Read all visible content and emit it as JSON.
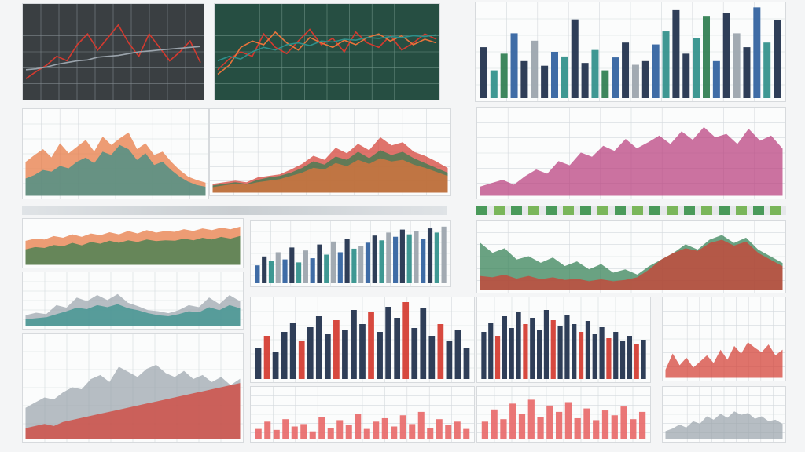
{
  "palette": {
    "red": "#d43a2f",
    "green": "#2e7d4f",
    "teal": "#2f8f8a",
    "orange": "#e8743b",
    "magenta": "#b8397a",
    "navy": "#1d2e4a",
    "blue": "#2f5f9e",
    "gray": "#9aa3ab",
    "lightred": "#e86a6a"
  },
  "chart_data": [
    {
      "id": "p1",
      "type": "line",
      "theme": "dark",
      "x": [
        1,
        2,
        3,
        4,
        5,
        6,
        7,
        8,
        9,
        10,
        11,
        12,
        13,
        14,
        15,
        16,
        17,
        18
      ],
      "series": [
        {
          "color": "red",
          "values": [
            20,
            28,
            35,
            45,
            40,
            58,
            70,
            52,
            66,
            80,
            60,
            45,
            70,
            55,
            40,
            50,
            62,
            38
          ]
        },
        {
          "color": "gray",
          "values": [
            30,
            31,
            33,
            36,
            38,
            40,
            41,
            44,
            45,
            46,
            48,
            50,
            51,
            52,
            53,
            54,
            55,
            56
          ]
        }
      ],
      "ylim": [
        0,
        100
      ],
      "grid": true
    },
    {
      "id": "p2",
      "type": "line",
      "theme": "darkgreen",
      "x": [
        1,
        2,
        3,
        4,
        5,
        6,
        7,
        8,
        9,
        10,
        11,
        12,
        13,
        14,
        15,
        16,
        17,
        18,
        19,
        20
      ],
      "series": [
        {
          "color": "red",
          "values": [
            30,
            42,
            50,
            45,
            70,
            55,
            48,
            62,
            75,
            58,
            65,
            50,
            72,
            60,
            55,
            68,
            52,
            60,
            70,
            64
          ]
        },
        {
          "color": "orange",
          "values": [
            25,
            35,
            55,
            62,
            58,
            72,
            60,
            52,
            66,
            60,
            55,
            63,
            58,
            66,
            70,
            62,
            68,
            58,
            64,
            60
          ]
        },
        {
          "color": "teal",
          "values": [
            40,
            45,
            42,
            50,
            55,
            52,
            58,
            60,
            57,
            62,
            61,
            64,
            63,
            66,
            65,
            67,
            66,
            68,
            67,
            69
          ]
        }
      ],
      "ylim": [
        0,
        100
      ],
      "grid": true
    },
    {
      "id": "p3",
      "type": "bar",
      "theme": "light",
      "values": [
        55,
        30,
        48,
        70,
        40,
        62,
        35,
        50,
        45,
        85,
        38,
        52,
        30,
        44,
        60,
        36,
        40,
        58,
        72,
        95,
        48,
        65,
        88,
        40,
        92,
        70,
        55,
        98,
        60,
        84
      ],
      "colors": [
        "navy",
        "teal",
        "green",
        "blue",
        "navy",
        "gray",
        "navy",
        "blue",
        "teal",
        "navy"
      ],
      "ylim": [
        0,
        100
      ],
      "grid": true
    },
    {
      "id": "p4",
      "type": "area",
      "theme": "light",
      "x": [
        1,
        2,
        3,
        4,
        5,
        6,
        7,
        8,
        9,
        10,
        11,
        12,
        13,
        14,
        15,
        16,
        17,
        18,
        19,
        20,
        21,
        22
      ],
      "series": [
        {
          "color": "orange",
          "values": [
            40,
            48,
            55,
            45,
            62,
            50,
            58,
            66,
            52,
            70,
            60,
            68,
            75,
            55,
            62,
            48,
            52,
            40,
            30,
            22,
            18,
            15
          ]
        },
        {
          "color": "teal",
          "values": [
            20,
            24,
            30,
            28,
            35,
            32,
            40,
            45,
            38,
            52,
            48,
            60,
            55,
            42,
            50,
            36,
            40,
            30,
            22,
            16,
            12,
            10
          ]
        }
      ],
      "ylim": [
        0,
        100
      ],
      "grid": true
    },
    {
      "id": "p5",
      "type": "area",
      "theme": "light",
      "x": [
        1,
        2,
        3,
        4,
        5,
        6,
        7,
        8,
        9,
        10,
        11,
        12,
        13,
        14,
        15,
        16,
        17,
        18,
        19,
        20,
        21,
        22
      ],
      "series": [
        {
          "color": "red",
          "values": [
            10,
            12,
            14,
            12,
            18,
            20,
            22,
            28,
            35,
            45,
            40,
            55,
            48,
            60,
            52,
            68,
            58,
            62,
            50,
            45,
            38,
            30
          ]
        },
        {
          "color": "green",
          "values": [
            8,
            10,
            12,
            10,
            15,
            18,
            20,
            24,
            30,
            38,
            34,
            44,
            40,
            50,
            42,
            52,
            46,
            50,
            42,
            36,
            30,
            24
          ]
        },
        {
          "color": "orange",
          "values": [
            6,
            8,
            10,
            9,
            12,
            14,
            16,
            20,
            24,
            30,
            28,
            36,
            32,
            40,
            35,
            42,
            38,
            40,
            34,
            30,
            25,
            20
          ]
        }
      ],
      "ylim": [
        0,
        100
      ],
      "grid": true
    },
    {
      "id": "p6",
      "type": "area",
      "theme": "light",
      "x": [
        1,
        2,
        3,
        4,
        5,
        6,
        7,
        8,
        9,
        10,
        11,
        12,
        13,
        14,
        15,
        16,
        17,
        18,
        19,
        20,
        21,
        22,
        23,
        24,
        25,
        26,
        27,
        28
      ],
      "series": [
        {
          "color": "magenta",
          "values": [
            10,
            14,
            18,
            12,
            22,
            30,
            25,
            40,
            35,
            50,
            45,
            58,
            52,
            66,
            55,
            62,
            70,
            60,
            75,
            65,
            80,
            68,
            72,
            60,
            78,
            64,
            70,
            55
          ]
        }
      ],
      "ylim": [
        0,
        100
      ],
      "grid": true
    },
    {
      "id": "p7",
      "type": "area",
      "theme": "light",
      "x": [
        1,
        2,
        3,
        4,
        5,
        6,
        7,
        8,
        9,
        10,
        11,
        12,
        13,
        14,
        15,
        16,
        17,
        18,
        19,
        20,
        21,
        22,
        23,
        24
      ],
      "series": [
        {
          "color": "orange",
          "values": [
            55,
            60,
            58,
            66,
            62,
            70,
            64,
            72,
            68,
            75,
            70,
            78,
            72,
            80,
            74,
            78,
            76,
            82,
            78,
            84,
            80,
            86,
            82,
            88
          ]
        },
        {
          "color": "green",
          "values": [
            35,
            40,
            38,
            45,
            42,
            50,
            44,
            52,
            48,
            55,
            50,
            56,
            52,
            58,
            54,
            56,
            55,
            60,
            56,
            62,
            58,
            64,
            60,
            66
          ]
        }
      ],
      "ylim": [
        0,
        100
      ],
      "grid": false
    },
    {
      "id": "p8",
      "type": "bar",
      "theme": "light",
      "values": [
        30,
        45,
        38,
        52,
        40,
        60,
        35,
        55,
        42,
        65,
        48,
        70,
        52,
        75,
        58,
        62,
        68,
        80,
        72,
        85,
        78,
        90,
        82,
        88,
        75,
        92,
        85,
        95
      ],
      "colors": [
        "blue",
        "navy",
        "teal",
        "gray"
      ],
      "ylim": [
        0,
        100
      ],
      "grid": true
    },
    {
      "id": "p9",
      "type": "area",
      "theme": "light",
      "x": [
        1,
        2,
        3,
        4,
        5,
        6,
        7,
        8,
        9,
        10,
        11,
        12,
        13,
        14,
        15,
        16,
        17,
        18,
        19,
        20,
        21,
        22,
        23,
        24,
        25,
        26
      ],
      "series": [
        {
          "color": "green",
          "values": [
            70,
            55,
            62,
            45,
            50,
            40,
            48,
            35,
            42,
            30,
            38,
            25,
            30,
            22,
            35,
            45,
            55,
            68,
            60,
            75,
            82,
            70,
            78,
            60,
            50,
            40
          ]
        },
        {
          "color": "red",
          "values": [
            20,
            18,
            22,
            16,
            20,
            15,
            18,
            14,
            16,
            12,
            15,
            12,
            14,
            18,
            30,
            45,
            55,
            62,
            58,
            70,
            75,
            66,
            72,
            55,
            45,
            35
          ]
        }
      ],
      "ylim": [
        0,
        100
      ],
      "grid": true
    },
    {
      "id": "p10",
      "type": "area",
      "theme": "light",
      "x": [
        1,
        2,
        3,
        4,
        5,
        6,
        7,
        8,
        9,
        10,
        11,
        12,
        13,
        14,
        15,
        16,
        17,
        18,
        19,
        20,
        21,
        22
      ],
      "series": [
        {
          "color": "gray",
          "values": [
            20,
            25,
            22,
            40,
            35,
            55,
            48,
            60,
            50,
            62,
            45,
            38,
            30,
            28,
            24,
            30,
            40,
            36,
            55,
            42,
            60,
            48
          ]
        },
        {
          "color": "teal",
          "values": [
            12,
            14,
            16,
            22,
            28,
            35,
            32,
            40,
            36,
            42,
            34,
            30,
            24,
            20,
            18,
            22,
            28,
            26,
            36,
            30,
            40,
            34
          ]
        }
      ],
      "ylim": [
        0,
        100
      ],
      "grid": true
    },
    {
      "id": "p11",
      "type": "area",
      "theme": "light",
      "x": [
        1,
        2,
        3,
        4,
        5,
        6,
        7,
        8,
        9,
        10,
        11,
        12,
        13,
        14,
        15,
        16,
        17,
        18,
        19,
        20,
        21,
        22,
        23,
        24
      ],
      "series": [
        {
          "color": "gray",
          "values": [
            30,
            35,
            40,
            38,
            45,
            50,
            48,
            58,
            62,
            55,
            70,
            65,
            60,
            68,
            72,
            64,
            60,
            66,
            58,
            62,
            55,
            60,
            52,
            58
          ]
        },
        {
          "color": "red",
          "values": [
            10,
            12,
            14,
            12,
            16,
            18,
            20,
            22,
            24,
            26,
            28,
            30,
            32,
            34,
            36,
            38,
            40,
            42,
            44,
            46,
            48,
            50,
            52,
            54
          ]
        }
      ],
      "ylim": [
        0,
        100
      ],
      "grid": true
    },
    {
      "id": "p12",
      "type": "bar",
      "theme": "light",
      "values": [
        40,
        55,
        35,
        60,
        72,
        48,
        66,
        80,
        58,
        75,
        62,
        88,
        70,
        85,
        60,
        92,
        78,
        98,
        65,
        90,
        55,
        70,
        48,
        62,
        40
      ],
      "colors": [
        "navy",
        "red",
        "navy",
        "navy"
      ],
      "ylim": [
        0,
        100
      ],
      "grid": true
    },
    {
      "id": "p13",
      "type": "bar",
      "theme": "light",
      "values": [
        60,
        72,
        55,
        80,
        65,
        85,
        70,
        78,
        62,
        88,
        75,
        68,
        82,
        70,
        60,
        74,
        58,
        66,
        52,
        60,
        48,
        55,
        44,
        50
      ],
      "colors": [
        "navy",
        "navy",
        "red",
        "navy"
      ],
      "ylim": [
        0,
        100
      ],
      "grid": true
    },
    {
      "id": "p14",
      "type": "area",
      "theme": "light",
      "x": [
        1,
        2,
        3,
        4,
        5,
        6,
        7,
        8,
        9,
        10,
        11,
        12,
        13,
        14,
        15,
        16,
        17,
        18
      ],
      "series": [
        {
          "color": "red",
          "values": [
            10,
            30,
            15,
            25,
            12,
            20,
            28,
            18,
            35,
            22,
            40,
            30,
            45,
            38,
            32,
            42,
            28,
            35
          ]
        }
      ],
      "ylim": [
        0,
        100
      ],
      "grid": true
    },
    {
      "id": "p15",
      "type": "bar",
      "theme": "light",
      "values": [
        20,
        35,
        18,
        40,
        25,
        30,
        15,
        45,
        22,
        38,
        28,
        50,
        20,
        35,
        42,
        25,
        48,
        30,
        55,
        22,
        40,
        28,
        35,
        20
      ],
      "colors": [
        "lightred"
      ],
      "ylim": [
        0,
        100
      ],
      "grid": true
    },
    {
      "id": "p16",
      "type": "bar",
      "theme": "light",
      "values": [
        35,
        60,
        40,
        72,
        50,
        80,
        45,
        68,
        55,
        75,
        42,
        62,
        38,
        58,
        48,
        66,
        40,
        55
      ],
      "colors": [
        "lightred"
      ],
      "ylim": [
        0,
        100
      ],
      "grid": true
    },
    {
      "id": "p17",
      "type": "area",
      "theme": "light",
      "x": [
        1,
        2,
        3,
        4,
        5,
        6,
        7,
        8,
        9,
        10,
        11,
        12,
        13,
        14,
        15,
        16,
        17,
        18
      ],
      "series": [
        {
          "color": "gray",
          "values": [
            15,
            20,
            28,
            22,
            35,
            30,
            45,
            38,
            50,
            42,
            55,
            48,
            52,
            40,
            45,
            35,
            38,
            30
          ]
        }
      ],
      "ylim": [
        0,
        100
      ],
      "grid": true
    }
  ]
}
